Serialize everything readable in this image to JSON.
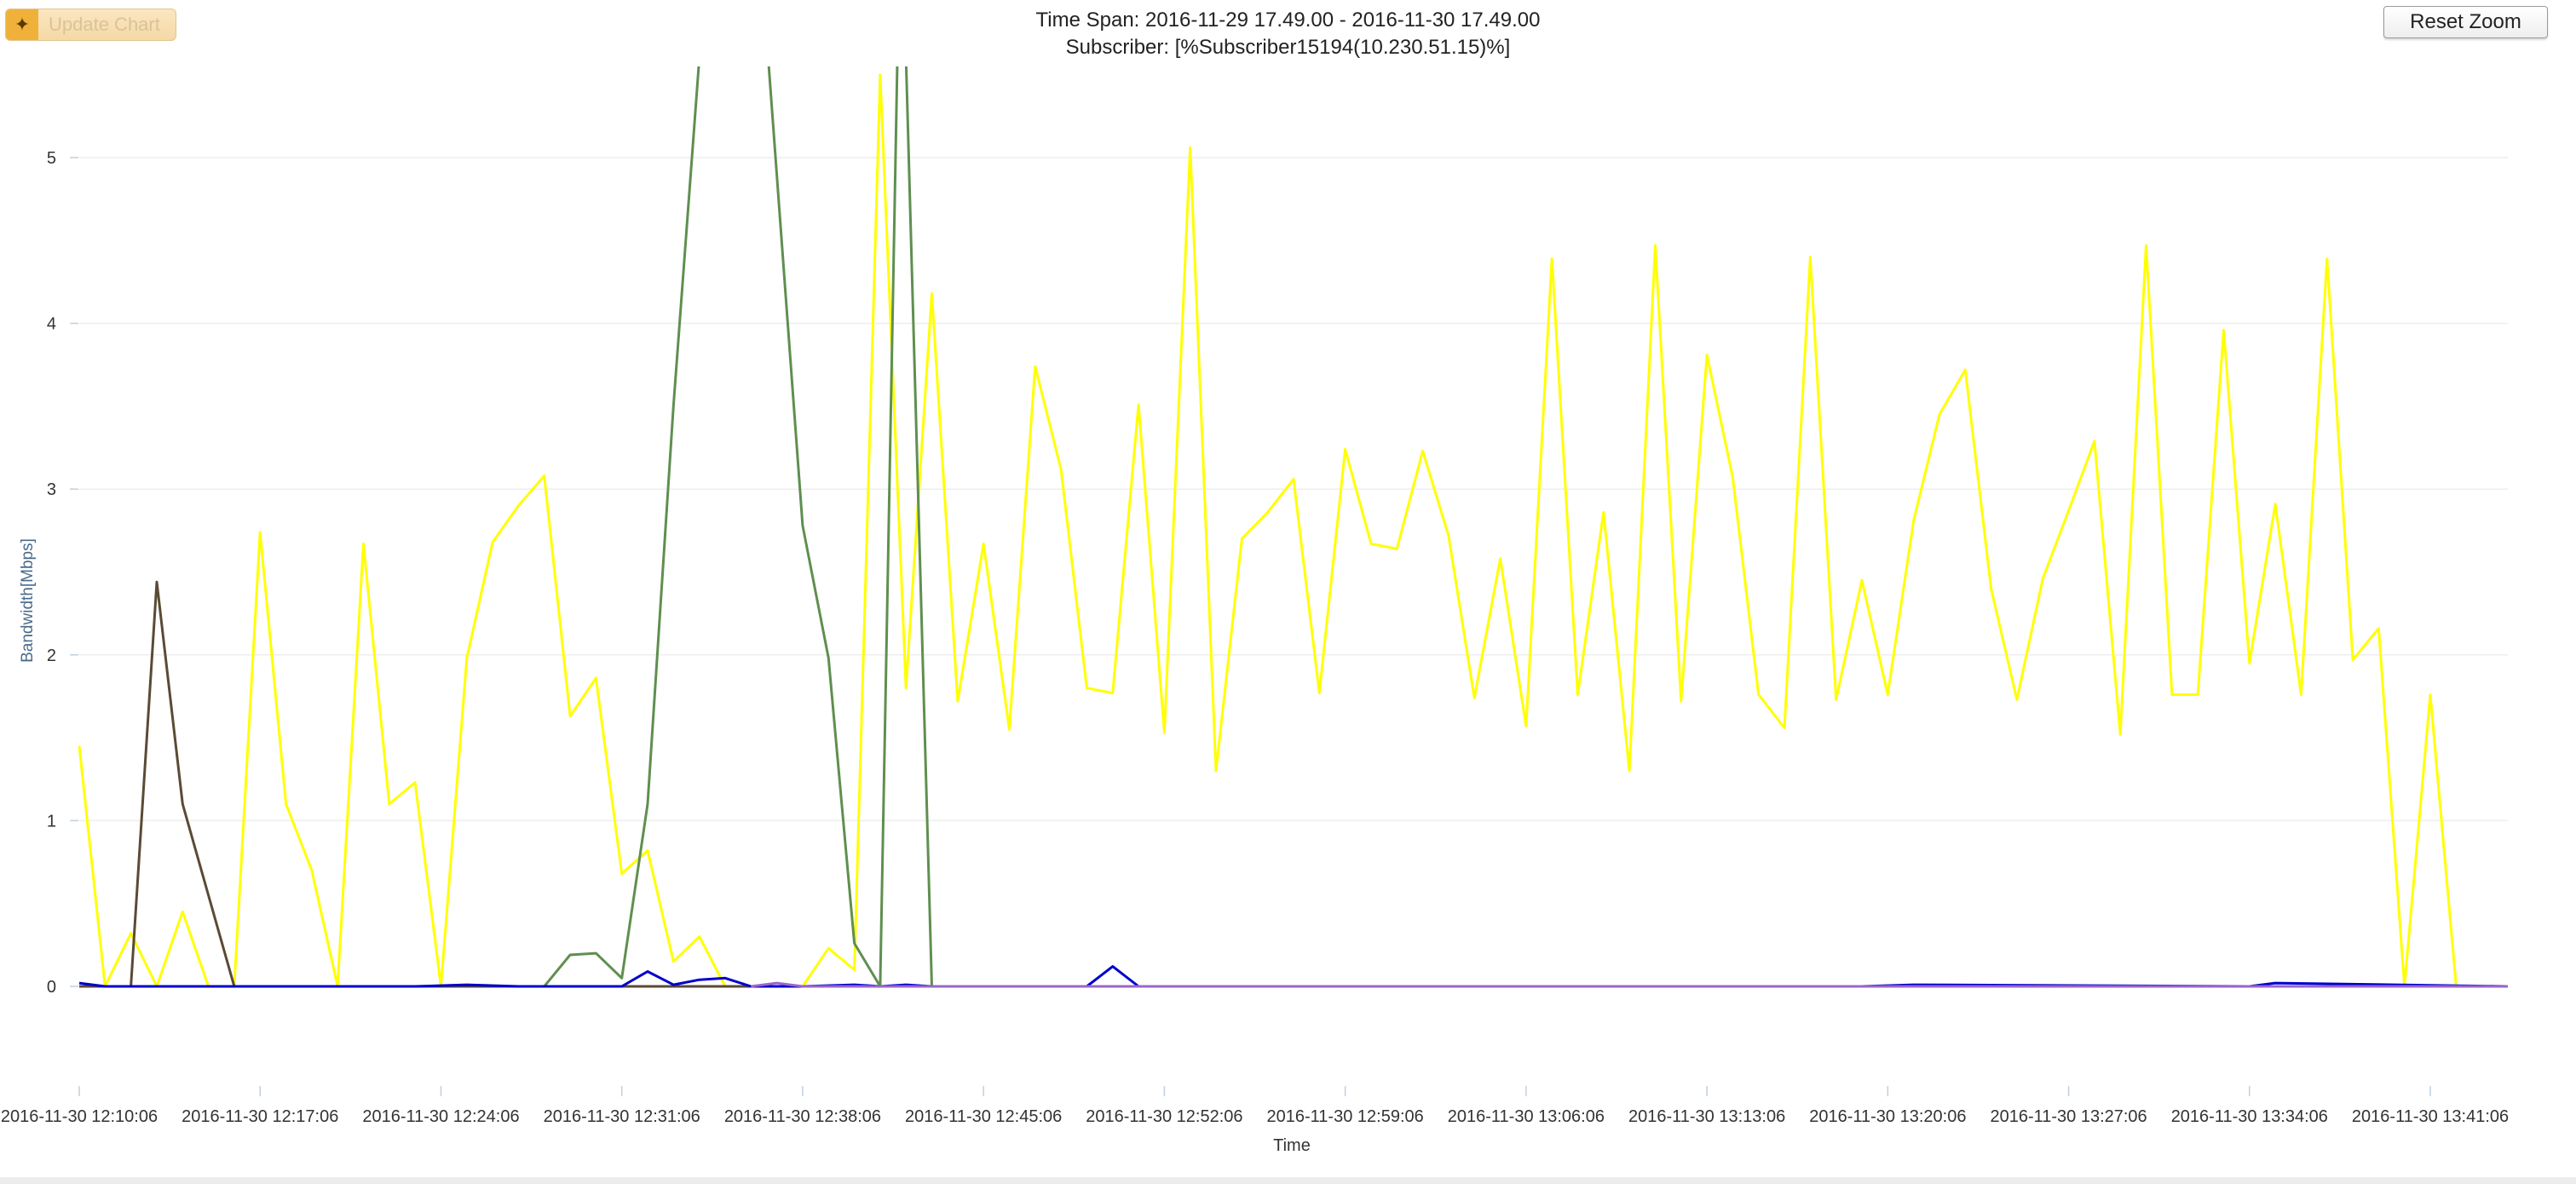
{
  "toolbar": {
    "update_label": "Update Chart",
    "reset_label": "Reset Zoom"
  },
  "header": {
    "time_span": "Time Span: 2016-11-29 17.49.00 - 2016-11-30 17.49.00",
    "subscriber": "Subscriber: [%Subscriber15194(10.230.51.15)%]"
  },
  "chart_data": {
    "type": "line",
    "xlabel": "Time",
    "ylabel": "Bandwidth[Mbps]",
    "ylim": [
      -0.6,
      5.5
    ],
    "y_ticks": [
      0,
      1,
      2,
      3,
      4,
      5
    ],
    "x_start": "2016-11-30 12:10:06",
    "x_end": "2016-11-30 13:44:06",
    "x_ticks": [
      "2016-11-30 12:10:06",
      "2016-11-30 12:17:06",
      "2016-11-30 12:24:06",
      "2016-11-30 12:31:06",
      "2016-11-30 12:38:06",
      "2016-11-30 12:45:06",
      "2016-11-30 12:52:06",
      "2016-11-30 12:59:06",
      "2016-11-30 13:06:06",
      "2016-11-30 13:13:06",
      "2016-11-30 13:20:06",
      "2016-11-30 13:27:06",
      "2016-11-30 13:34:06",
      "2016-11-30 13:41:06"
    ],
    "grid": true,
    "legend": "none",
    "series": [
      {
        "color": "#ffff00",
        "x": [
          "12:10:06",
          "12:11:06",
          "12:12:06",
          "12:13:06",
          "12:14:06",
          "12:15:06",
          "12:16:06",
          "12:17:06",
          "12:18:06",
          "12:19:06",
          "12:20:06",
          "12:21:06",
          "12:22:06",
          "12:23:06",
          "12:24:06",
          "12:25:06",
          "12:26:06",
          "12:27:06",
          "12:28:06",
          "12:29:06",
          "12:30:06",
          "12:31:06",
          "12:32:06",
          "12:33:06",
          "12:34:06",
          "12:35:06",
          "12:36:06",
          "12:37:06",
          "12:38:06",
          "12:39:06",
          "12:40:06",
          "12:41:06",
          "12:42:06",
          "12:43:06",
          "12:44:06",
          "12:45:06",
          "12:46:06",
          "12:47:06",
          "12:48:06",
          "12:49:06",
          "12:50:06",
          "12:51:06",
          "12:52:06",
          "12:53:06",
          "12:54:06",
          "12:55:06",
          "12:56:06",
          "12:57:06",
          "12:58:06",
          "12:59:06",
          "13:00:06",
          "13:01:06",
          "13:02:06",
          "13:03:06",
          "13:04:06",
          "13:05:06",
          "13:06:06",
          "13:07:06",
          "13:08:06",
          "13:09:06",
          "13:10:06",
          "13:11:06",
          "13:12:06",
          "13:13:06",
          "13:14:06",
          "13:15:06",
          "13:16:06",
          "13:17:06",
          "13:18:06",
          "13:19:06",
          "13:20:06",
          "13:21:06",
          "13:22:06",
          "13:23:06",
          "13:24:06",
          "13:25:06",
          "13:26:06",
          "13:27:06",
          "13:28:06",
          "13:29:06",
          "13:30:06",
          "13:31:06",
          "13:32:06",
          "13:33:06",
          "13:34:06",
          "13:35:06",
          "13:36:06",
          "13:37:06",
          "13:38:06",
          "13:39:06",
          "13:40:06",
          "13:41:06",
          "13:42:06"
        ],
        "values": [
          1.45,
          0.0,
          0.32,
          0.0,
          0.45,
          0.0,
          0.0,
          2.74,
          1.1,
          0.7,
          0.0,
          2.67,
          1.1,
          1.23,
          0.0,
          1.98,
          2.68,
          2.9,
          3.08,
          1.63,
          1.86,
          0.68,
          0.82,
          0.15,
          0.3,
          0.0,
          0.0,
          0.0,
          0.0,
          0.23,
          0.1,
          5.5,
          1.8,
          4.18,
          1.72,
          2.67,
          1.55,
          3.74,
          3.12,
          1.8,
          1.77,
          3.51,
          1.53,
          5.06,
          1.3,
          2.7,
          2.86,
          3.06,
          1.77,
          3.24,
          2.67,
          2.64,
          3.23,
          2.72,
          1.74,
          2.58,
          1.57,
          4.39,
          1.76,
          2.86,
          1.3,
          4.47,
          1.72,
          3.81,
          3.07,
          1.76,
          1.56,
          4.4,
          1.73,
          2.45,
          1.76,
          2.81,
          3.45,
          3.72,
          2.4,
          1.73,
          2.46,
          2.87,
          3.29,
          1.52,
          4.47,
          1.76,
          1.76,
          3.96,
          1.95,
          2.91,
          1.76,
          4.39,
          1.97,
          2.16,
          0.0,
          1.76,
          0.0
        ]
      },
      {
        "color": "#5f8f4f",
        "x": [
          "12:28:06",
          "12:29:06",
          "12:30:06",
          "12:31:06",
          "12:32:06",
          "12:33:06",
          "12:34:06",
          "12:35:06",
          "12:36:06",
          "12:36:46",
          "12:38:06",
          "12:39:06",
          "12:40:06",
          "12:41:06",
          "12:41:46",
          "12:42:06",
          "12:43:06",
          "13:44:06"
        ],
        "values": [
          0.0,
          0.19,
          0.2,
          0.05,
          1.1,
          3.5,
          5.6,
          8.0,
          8.0,
          5.6,
          2.78,
          1.98,
          0.26,
          0.0,
          5.6,
          5.6,
          0.0,
          0.0
        ]
      },
      {
        "color": "#5a4a35",
        "x": [
          "12:10:06",
          "12:11:06",
          "12:12:06",
          "12:13:06",
          "12:14:06",
          "12:15:06",
          "12:16:06",
          "13:44:06"
        ],
        "values": [
          0.0,
          0.0,
          0.0,
          2.44,
          1.1,
          0.55,
          0.0,
          0.0
        ]
      },
      {
        "color": "#00cc00",
        "x": [
          "12:13:06",
          "12:16:06"
        ],
        "values": [
          0.0,
          0.0
        ]
      },
      {
        "color": "#0000cc",
        "x": [
          "12:10:06",
          "12:11:06",
          "12:23:06",
          "12:25:06",
          "12:27:06",
          "12:31:06",
          "12:32:06",
          "12:33:06",
          "12:34:06",
          "12:35:06",
          "12:36:06",
          "12:38:06",
          "12:40:06",
          "12:41:06",
          "12:42:06",
          "12:43:06",
          "12:49:06",
          "12:50:06",
          "12:51:06",
          "12:52:06",
          "13:19:06",
          "13:21:06",
          "13:34:06",
          "13:35:06",
          "13:44:06"
        ],
        "values": [
          0.02,
          0.0,
          0.0,
          0.01,
          0.0,
          0.0,
          0.09,
          0.01,
          0.04,
          0.05,
          0.0,
          0.0,
          0.01,
          0.0,
          0.01,
          0.0,
          0.0,
          0.12,
          0.0,
          0.0,
          0.0,
          0.01,
          0.0,
          0.02,
          0.0
        ]
      },
      {
        "color": "#9966cc",
        "x": [
          "12:36:06",
          "12:37:06",
          "12:38:06",
          "13:44:06"
        ],
        "values": [
          0.0,
          0.02,
          0.0,
          0.0
        ]
      }
    ]
  }
}
